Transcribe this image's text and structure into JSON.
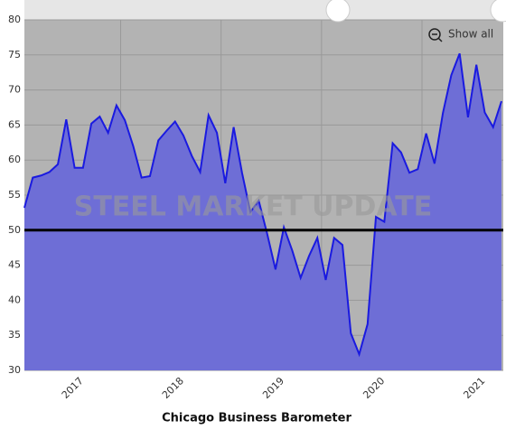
{
  "chart_data": {
    "type": "area",
    "title": "Chicago Business Barometer",
    "watermark": "STEEL MARKET UPDATE",
    "button": "Show all",
    "categories": [
      null,
      null,
      null,
      null,
      null,
      null,
      "2017",
      null,
      null,
      null,
      null,
      null,
      null,
      null,
      null,
      null,
      null,
      null,
      "2018",
      null,
      null,
      null,
      null,
      null,
      null,
      null,
      null,
      null,
      null,
      null,
      "2019",
      null,
      null,
      null,
      null,
      null,
      null,
      null,
      null,
      null,
      null,
      null,
      "2020",
      null,
      null,
      null,
      null,
      null,
      null,
      null,
      null,
      null,
      null,
      null,
      "2021",
      null,
      null,
      null
    ],
    "values": [
      53.2,
      57.5,
      57.8,
      58.3,
      59.4,
      65.8,
      58.9,
      58.9,
      65.2,
      66.2,
      63.9,
      67.8,
      65.7,
      62.0,
      57.5,
      57.7,
      62.8,
      64.2,
      65.5,
      63.5,
      60.6,
      58.3,
      66.4,
      63.9,
      56.7,
      64.7,
      58.2,
      52.6,
      54.2,
      49.5,
      44.4,
      50.4,
      47.1,
      43.2,
      46.3,
      48.9,
      42.9,
      48.9,
      47.9,
      35.3,
      32.3,
      36.6,
      51.9,
      51.2,
      62.4,
      61.1,
      58.2,
      58.7,
      63.8,
      59.5,
      66.7,
      72.1,
      75.2,
      66.1,
      73.6,
      66.8,
      64.7,
      68.4
    ],
    "color": "#1a1ae0",
    "fill_color": "#6e6ed6",
    "reference_line": 50,
    "ylim": [
      30,
      80
    ],
    "yticks": [
      30,
      35,
      40,
      45,
      50,
      55,
      60,
      65,
      70,
      75,
      80
    ],
    "grid": true
  }
}
